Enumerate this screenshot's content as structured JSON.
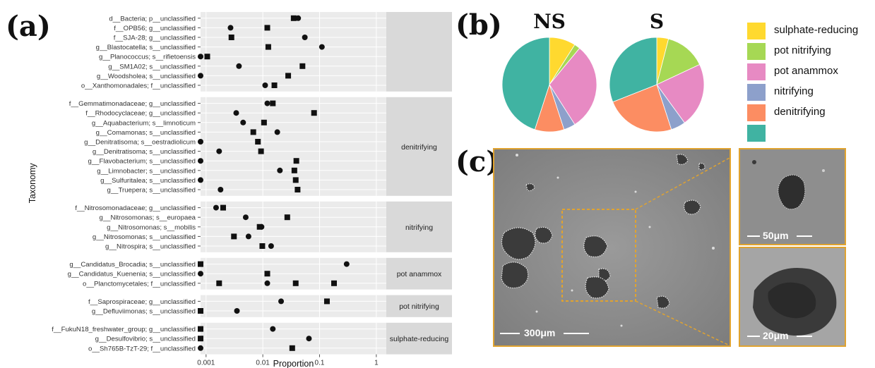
{
  "panel_labels": {
    "a": "(a)",
    "b": "(b)",
    "c": "(c)"
  },
  "chart_data": [
    {
      "type": "scatter",
      "panel": "(a)",
      "xlabel": "Proportion",
      "ylabel": "Taxonomy",
      "x_scale": "log",
      "xlim": [
        0.0008,
        1.5
      ],
      "x_ticks": [
        "0.001",
        "0.01",
        "0.1",
        "1"
      ],
      "x_tick_values": [
        0.001,
        0.01,
        0.1,
        1
      ],
      "marker_legend": {
        "circle": "",
        "square": ""
      },
      "groups": [
        {
          "label": "",
          "rows": [
            {
              "taxon": "d__Bacteria; p__unclassified",
              "circle": 0.042,
              "square": 0.035
            },
            {
              "taxon": "f__OPB56; g__unclassified",
              "circle": 0.0027,
              "square": 0.012
            },
            {
              "taxon": "f__SJA-28; g__unclassified",
              "circle": 0.055,
              "square": 0.0028
            },
            {
              "taxon": "g__Blastocatella; s__unclassified",
              "circle": 0.11,
              "square": 0.0125
            },
            {
              "taxon": "g__Planococcus; s__rifietoensis",
              "circle": 0.0008,
              "square": 0.00105
            },
            {
              "taxon": "g__SM1A02; s__unclassified",
              "circle": 0.0038,
              "square": 0.05
            },
            {
              "taxon": "g__Woodsholea; s__unclassified",
              "circle": 0.0008,
              "square": 0.028
            },
            {
              "taxon": "o__Xanthomonadales; f__unclassified",
              "circle": 0.011,
              "square": 0.016
            }
          ]
        },
        {
          "label": "denitrifying",
          "rows": [
            {
              "taxon": "f__Gemmatimonadaceae; g__unclassified",
              "circle": 0.012,
              "square": 0.015
            },
            {
              "taxon": "f__Rhodocyclaceae; g__unclassified",
              "circle": 0.0034,
              "square": 0.08
            },
            {
              "taxon": "g__Aquabacterium; s__limnoticum",
              "circle": 0.0045,
              "square": 0.0105
            },
            {
              "taxon": "g__Comamonas; s__unclassified",
              "circle": 0.018,
              "square": 0.0068
            },
            {
              "taxon": "g__Denitratisoma; s__oestradiolicum",
              "circle": 0.0008,
              "square": 0.0082
            },
            {
              "taxon": "g__Denitratisoma; s__unclassified",
              "circle": 0.0017,
              "square": 0.0093
            },
            {
              "taxon": "g__Flavobacterium; s__unclassified",
              "circle": 0.0008,
              "square": 0.039
            },
            {
              "taxon": "g__Limnobacter; s__unclassified",
              "circle": 0.02,
              "square": 0.036
            },
            {
              "taxon": "g__Sulfuritalea; s__unclassified",
              "circle": 0.0008,
              "square": 0.038
            },
            {
              "taxon": "g__Truepera; s__unclassified",
              "circle": 0.0018,
              "square": 0.041
            }
          ]
        },
        {
          "label": "nitrifying",
          "rows": [
            {
              "taxon": "f__Nitrosomonadaceae; g__unclassified",
              "circle": 0.0015,
              "square": 0.002
            },
            {
              "taxon": "g__Nitrosomonas; s__europaea",
              "circle": 0.005,
              "square": 0.027
            },
            {
              "taxon": "g__Nitrosomonas; s__mobilis",
              "circle": 0.0095,
              "square": 0.0088
            },
            {
              "taxon": "g__Nitrosomonas; s__unclassified",
              "circle": 0.0056,
              "square": 0.0031
            },
            {
              "taxon": "g__Nitrospira; s__unclassified",
              "circle": 0.014,
              "square": 0.0098
            }
          ]
        },
        {
          "label": "pot anammox",
          "rows": [
            {
              "taxon": "g__Candidatus_Brocadia; s__unclassified",
              "circle": 0.3,
              "square": 0.0008
            },
            {
              "taxon": "g__Candidatus_Kuenenia; s__unclassified",
              "circle": 0.0008,
              "square": 0.012
            },
            {
              "taxon": "o__Planctomycetales; f__unclassified",
              "circle": 0.012,
              "square": 0.18,
              "extra_squares": [
                0.0017,
                0.038
              ]
            }
          ]
        },
        {
          "label": "pot nitrifying",
          "rows": [
            {
              "taxon": "f__Saprospiraceae; g__unclassified",
              "circle": 0.021,
              "square": 0.135
            },
            {
              "taxon": "g__Defluviimonas; s__unclassified",
              "circle": 0.0035,
              "square": 0.0008
            }
          ]
        },
        {
          "label": "sulphate-reducing",
          "rows": [
            {
              "taxon": "f__FukuN18_freshwater_group; g__unclassified",
              "circle": 0.015,
              "square": 0.0008
            },
            {
              "taxon": "g__Desulfovibrio; s__unclassified",
              "circle": 0.065,
              "square": 0.0008
            },
            {
              "taxon": "o__Sh765B-TzT-29; f__unclassified",
              "circle": 0.0008,
              "square": 0.033
            }
          ]
        }
      ]
    },
    {
      "type": "pie",
      "panel": "(b)",
      "title": "NS",
      "categories": [
        "sulphate-reducing",
        "pot nitrifying",
        "pot anammox",
        "nitrifying",
        "denitrifying",
        ""
      ],
      "values": [
        0.09,
        0.02,
        0.3,
        0.04,
        0.1,
        0.45
      ]
    },
    {
      "type": "pie",
      "panel": "(b)",
      "title": "S",
      "categories": [
        "sulphate-reducing",
        "pot nitrifying",
        "pot anammox",
        "nitrifying",
        "denitrifying",
        ""
      ],
      "values": [
        0.04,
        0.14,
        0.22,
        0.05,
        0.24,
        0.31
      ]
    }
  ],
  "legend": [
    {
      "label": "sulphate-reducing",
      "color": "#ffd92f"
    },
    {
      "label": "pot nitrifying",
      "color": "#a6d854"
    },
    {
      "label": "pot anammox",
      "color": "#e78ac3"
    },
    {
      "label": "nitrifying",
      "color": "#8da0cb"
    },
    {
      "label": "denitrifying",
      "color": "#fc8d62"
    },
    {
      "label": "",
      "color": "#40b3a2"
    }
  ],
  "colors": {
    "panel_bg": "#ebebeb",
    "strip_bg": "#d9d9d9",
    "grid": "#ffffff",
    "marker": "#111111",
    "micro_border": "#e0a330"
  },
  "micrographs": {
    "main_scale": "300μm",
    "inset_top_scale": "50μm",
    "inset_bottom_scale": "20μm"
  }
}
